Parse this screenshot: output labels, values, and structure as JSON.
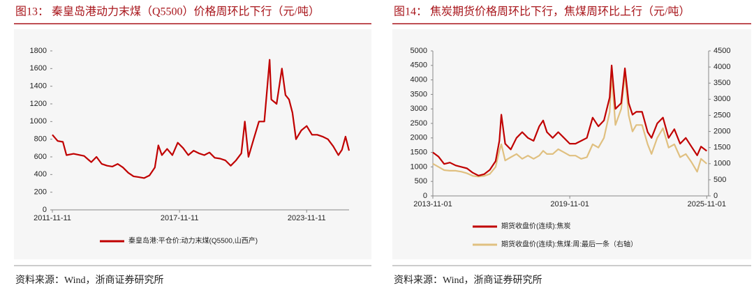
{
  "chart_data": [
    {
      "type": "line",
      "title": "图13：  秦皇岛港动力末煤（Q5500）价格周环比下行（元/吨）",
      "source": "资料来源：Wind，浙商证券研究所",
      "x": [
        "2011-11-11",
        "2012-02-11",
        "2012-05-11",
        "2012-07-11",
        "2012-11-11",
        "2013-05-11",
        "2013-09-11",
        "2013-12-11",
        "2014-03-11",
        "2014-06-11",
        "2014-09-11",
        "2014-12-11",
        "2015-03-11",
        "2015-06-11",
        "2015-09-11",
        "2015-12-11",
        "2016-03-11",
        "2016-06-11",
        "2016-09-11",
        "2016-11-11",
        "2017-01-11",
        "2017-04-11",
        "2017-07-11",
        "2017-10-11",
        "2018-01-11",
        "2018-04-11",
        "2018-07-11",
        "2018-10-11",
        "2019-01-11",
        "2019-04-11",
        "2019-07-11",
        "2019-10-11",
        "2020-01-11",
        "2020-04-11",
        "2020-07-11",
        "2020-10-11",
        "2020-12-11",
        "2021-02-11",
        "2021-05-11",
        "2021-08-11",
        "2021-11-11",
        "2022-02-11",
        "2022-03-11",
        "2022-06-11",
        "2022-09-11",
        "2022-11-11",
        "2023-01-11",
        "2023-03-11",
        "2023-05-11",
        "2023-08-11",
        "2023-11-11",
        "2024-02-11",
        "2024-05-11",
        "2024-08-11",
        "2024-11-11",
        "2025-02-11",
        "2025-05-11",
        "2025-07-11",
        "2025-09-11",
        "2025-11-11"
      ],
      "series": [
        {
          "name": "秦皇岛港:平仓价:动力末煤(Q5500,山西产)",
          "color": "#c00000",
          "values": [
            850,
            780,
            770,
            620,
            635,
            610,
            540,
            600,
            520,
            500,
            490,
            520,
            480,
            420,
            380,
            370,
            360,
            390,
            480,
            730,
            620,
            690,
            620,
            760,
            700,
            620,
            670,
            640,
            620,
            650,
            590,
            580,
            560,
            500,
            560,
            640,
            1000,
            600,
            800,
            1000,
            1000,
            1700,
            1250,
            1200,
            1600,
            1300,
            1250,
            1100,
            800,
            900,
            950,
            850,
            850,
            830,
            800,
            720,
            620,
            680,
            830,
            670
          ]
        }
      ],
      "xlim": [
        "2011-11-11",
        "2025-11-11"
      ],
      "xticks": [
        "2011-11-11",
        "2017-11-11",
        "2023-11-11"
      ],
      "ylim": [
        0,
        1800
      ],
      "yticks": [
        0,
        200,
        400,
        600,
        800,
        1000,
        1200,
        1400,
        1600,
        1800
      ]
    },
    {
      "type": "line",
      "title": "图14：  焦炭期货价格周环比下行，焦煤周环比上行（元/吨）",
      "source": "资料来源：Wind，浙商证券研究所",
      "x": [
        "2013-11-01",
        "2014-02-01",
        "2014-05-01",
        "2014-08-01",
        "2014-11-01",
        "2015-02-01",
        "2015-05-01",
        "2015-08-01",
        "2015-11-01",
        "2016-02-01",
        "2016-05-01",
        "2016-08-01",
        "2016-10-01",
        "2016-11-01",
        "2017-01-01",
        "2017-04-01",
        "2017-07-01",
        "2017-10-01",
        "2018-01-01",
        "2018-04-01",
        "2018-07-01",
        "2018-09-01",
        "2018-11-01",
        "2019-02-01",
        "2019-05-01",
        "2019-08-01",
        "2019-11-01",
        "2020-02-01",
        "2020-05-01",
        "2020-08-01",
        "2020-11-01",
        "2021-02-01",
        "2021-05-01",
        "2021-08-01",
        "2021-09-01",
        "2021-11-01",
        "2022-02-01",
        "2022-04-01",
        "2022-06-01",
        "2022-08-01",
        "2022-10-01",
        "2023-01-01",
        "2023-04-01",
        "2023-06-01",
        "2023-09-01",
        "2023-12-01",
        "2024-03-01",
        "2024-06-01",
        "2024-09-01",
        "2024-12-01",
        "2025-03-01",
        "2025-06-01",
        "2025-08-01",
        "2025-11-01"
      ],
      "series": [
        {
          "name": "期货收盘价(连续):焦炭",
          "color": "#c00000",
          "values": [
            1500,
            1350,
            1100,
            1150,
            1050,
            1000,
            950,
            800,
            700,
            750,
            900,
            1200,
            1900,
            2800,
            1800,
            1600,
            2000,
            2200,
            2000,
            1900,
            2400,
            2600,
            2200,
            2000,
            2200,
            2000,
            1800,
            1800,
            1900,
            2000,
            2700,
            2400,
            2600,
            3400,
            4500,
            3000,
            3200,
            4400,
            3200,
            2800,
            2900,
            2900,
            2200,
            2000,
            2500,
            2700,
            2000,
            2300,
            1800,
            2000,
            1700,
            1400,
            1700,
            1550
          ]
        },
        {
          "name": "期货收盘价(连续):焦煤:周:最后一条（右轴）",
          "color": "#e0c080",
          "axis": "y2",
          "values": [
            1000,
            900,
            800,
            780,
            780,
            750,
            700,
            620,
            600,
            620,
            680,
            900,
            1400,
            1600,
            1100,
            1200,
            1300,
            1150,
            1250,
            1150,
            1250,
            1400,
            1300,
            1300,
            1450,
            1350,
            1250,
            1250,
            1150,
            1200,
            1600,
            1500,
            1800,
            2600,
            3800,
            2200,
            2700,
            3800,
            2500,
            2000,
            2200,
            2200,
            1600,
            1300,
            1800,
            2100,
            1500,
            1600,
            1200,
            1300,
            1050,
            750,
            1150,
            1000
          ]
        }
      ],
      "xlim": [
        "2013-11-01",
        "2025-12-01"
      ],
      "xticks": [
        "2013-11-01",
        "2019-11-01",
        "2025-11-01"
      ],
      "ylim": [
        0,
        5000
      ],
      "yticks": [
        0,
        500,
        1000,
        1500,
        2000,
        2500,
        3000,
        3500,
        4000,
        4500,
        5000
      ],
      "y2lim": [
        0,
        4500
      ],
      "y2ticks": [
        0,
        500,
        1000,
        1500,
        2000,
        2500,
        3000,
        3500,
        4000,
        4500
      ]
    }
  ]
}
